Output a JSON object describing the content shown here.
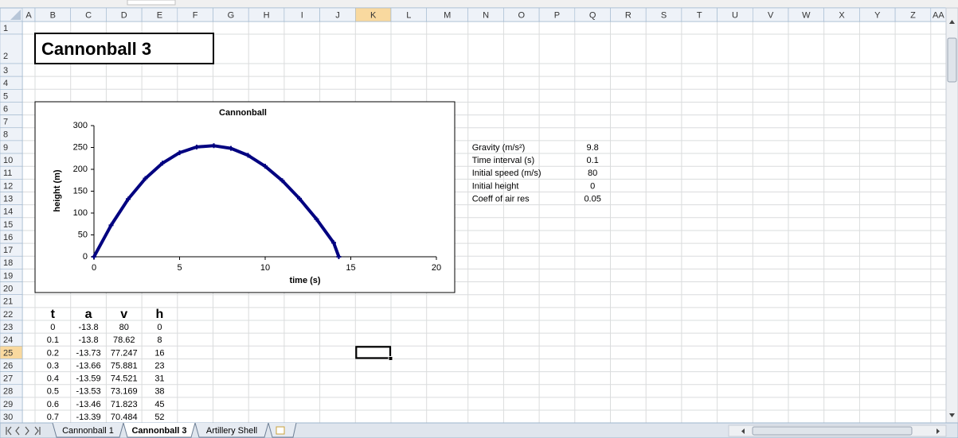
{
  "columns": [
    "A",
    "B",
    "C",
    "D",
    "E",
    "F",
    "G",
    "H",
    "I",
    "J",
    "K",
    "L",
    "M",
    "N",
    "O",
    "P",
    "Q",
    "R",
    "S",
    "T",
    "U",
    "V",
    "W",
    "X",
    "Y",
    "Z",
    "AA"
  ],
  "rows": [
    1,
    2,
    3,
    4,
    5,
    6,
    7,
    8,
    9,
    10,
    11,
    12,
    13,
    14,
    15,
    16,
    17,
    18,
    19,
    20,
    21,
    22,
    23,
    24,
    25,
    26,
    27,
    28,
    29,
    30
  ],
  "sheet_title": "Cannonball 3",
  "parameters": [
    {
      "label": "Gravity (m/s²)",
      "value": 9.8
    },
    {
      "label": "Time interval (s)",
      "value": 0.1
    },
    {
      "label": "Initial speed (m/s)",
      "value": 80
    },
    {
      "label": "Initial height",
      "value": 0
    },
    {
      "label": "Coeff of air res",
      "value": 0.05
    }
  ],
  "table": {
    "headers": [
      "t",
      "a",
      "v",
      "h"
    ],
    "rows": [
      [
        0,
        -13.8,
        80,
        0
      ],
      [
        0.1,
        -13.8,
        78.62,
        8
      ],
      [
        0.2,
        -13.73,
        77.247,
        16
      ],
      [
        0.3,
        -13.66,
        75.881,
        23
      ],
      [
        0.4,
        -13.59,
        74.521,
        31
      ],
      [
        0.5,
        -13.53,
        73.169,
        38
      ],
      [
        0.6,
        -13.46,
        71.823,
        45
      ],
      [
        0.7,
        -13.39,
        70.484,
        52
      ]
    ]
  },
  "chart_data": {
    "type": "scatter",
    "title": "Cannonball",
    "x_label": "time (s)",
    "y_label": "height (m)",
    "x": [
      0,
      1,
      2,
      3,
      4,
      5,
      6,
      7,
      8,
      9,
      10,
      11,
      12,
      13,
      14,
      14.3
    ],
    "series": [
      {
        "name": "height",
        "color": "#000080",
        "values": [
          0,
          72,
          132,
          179,
          214,
          238,
          251,
          254,
          248,
          232,
          207,
          174,
          133,
          86,
          32,
          0
        ]
      }
    ],
    "xlim": [
      0,
      20
    ],
    "xticks": [
      0,
      5,
      10,
      15,
      20
    ],
    "ylim": [
      0,
      300
    ],
    "yticks": [
      0,
      50,
      100,
      150,
      200,
      250,
      300
    ],
    "grid": false
  },
  "sheet_tabs": [
    "Cannonball 1",
    "Cannonball 3",
    "Artillery Shell"
  ]
}
